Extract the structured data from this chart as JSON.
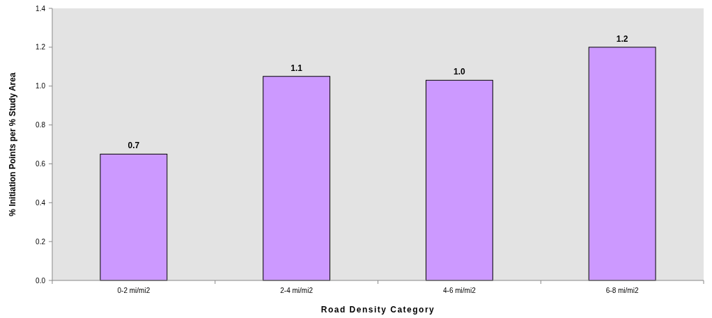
{
  "chart_data": {
    "type": "bar",
    "xlabel": "Road Density Category",
    "ylabel": "% Initiation Points per % Study Area",
    "categories": [
      "0-2 mi/mi2",
      "2-4 mi/mi2",
      "4-6 mi/mi2",
      "6-8 mi/mi2"
    ],
    "values": [
      0.65,
      1.05,
      1.03,
      1.2
    ],
    "value_labels": [
      "0.7",
      "1.1",
      "1.0",
      "1.2"
    ],
    "color": "#cc99ff",
    "ylim": [
      0,
      1.4
    ],
    "yticks": [
      {
        "value": 0,
        "label": "0.0"
      },
      {
        "value": 0.2,
        "label": "0.2"
      },
      {
        "value": 0.4,
        "label": "0.4"
      },
      {
        "value": 0.6,
        "label": "0.6"
      },
      {
        "value": 0.8,
        "label": "0.8"
      },
      {
        "value": 1,
        "label": "1.0"
      },
      {
        "value": 1.2,
        "label": "1.2"
      },
      {
        "value": 1.4,
        "label": "1.4"
      }
    ],
    "grid": false
  }
}
